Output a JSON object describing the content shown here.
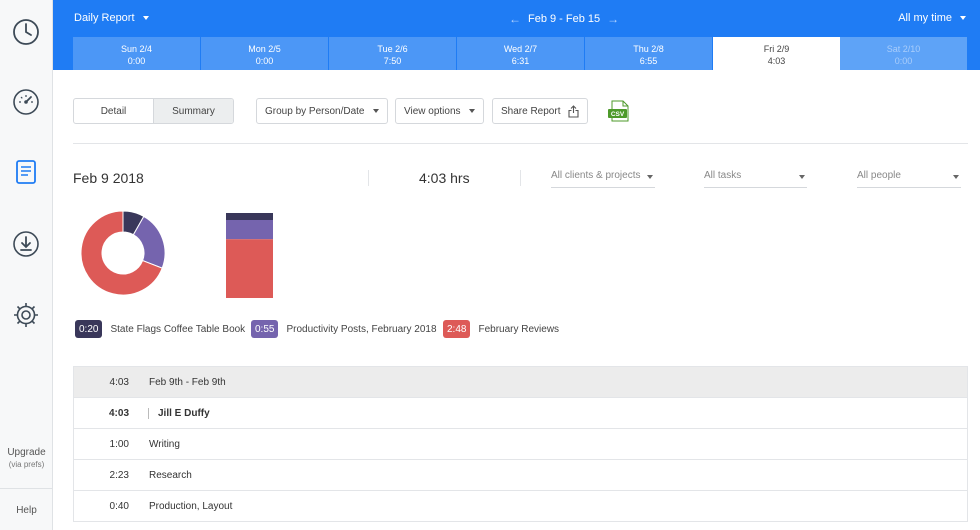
{
  "sidebar": {
    "icons": [
      "clock-icon",
      "speedometer-icon",
      "report-icon",
      "download-icon",
      "gear-icon"
    ],
    "upgrade_label": "Upgrade",
    "upgrade_sub": "(via prefs)",
    "help_label": "Help"
  },
  "header": {
    "report_label": "Daily Report",
    "date_range": "Feb 9 - Feb 15",
    "time_filter": "All my time"
  },
  "days": [
    {
      "label": "Sun 2/4",
      "value": "0:00"
    },
    {
      "label": "Mon 2/5",
      "value": "0:00"
    },
    {
      "label": "Tue 2/6",
      "value": "7:50"
    },
    {
      "label": "Wed 2/7",
      "value": "6:31"
    },
    {
      "label": "Thu 2/8",
      "value": "6:55"
    },
    {
      "label": "Fri 2/9",
      "value": "4:03"
    },
    {
      "label": "Sat 2/10",
      "value": "0:00"
    }
  ],
  "toolbar": {
    "detail_label": "Detail",
    "summary_label": "Summary",
    "group_label": "Group by Person/Date",
    "view_label": "View options",
    "share_label": "Share Report",
    "csv_label": "CSV"
  },
  "summary": {
    "date": "Feb 9 2018",
    "hours": "4:03 hrs",
    "filter_clients": "All clients & projects",
    "filter_tasks": "All tasks",
    "filter_people": "All people"
  },
  "colors": {
    "accent": "#1f7cf4",
    "project1": "#39375a",
    "project2": "#7564ae",
    "project3": "#dd5a57"
  },
  "legend": [
    {
      "time": "0:20",
      "name": "State Flags Coffee Table Book"
    },
    {
      "time": "0:55",
      "name": "Productivity Posts, February 2018"
    },
    {
      "time": "2:48",
      "name": "February Reviews"
    }
  ],
  "table": {
    "rows": [
      {
        "duration": "4:03",
        "label": "Feb 9th - Feb 9th"
      },
      {
        "duration": "4:03",
        "label": "Jill E Duffy"
      },
      {
        "duration": "1:00",
        "label": "Writing"
      },
      {
        "duration": "2:23",
        "label": "Research"
      },
      {
        "duration": "0:40",
        "label": "Production, Layout"
      }
    ]
  }
}
